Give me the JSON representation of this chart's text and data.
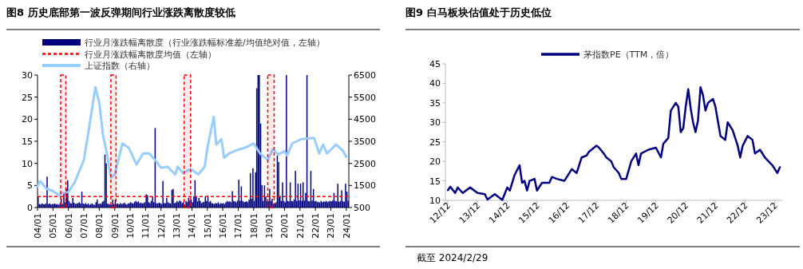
{
  "chart_data": [
    {
      "type": "bar",
      "title": "图8 历史底部第一波反弹期间行业涨跌离散度较低",
      "x": [
        "2004-01",
        "2004-02",
        "2004-03",
        "2004-04",
        "2004-05",
        "2004-06",
        "2004-07",
        "2004-08",
        "2004-09",
        "2004-10",
        "2004-11",
        "2004-12",
        "2005-01",
        "2005-02",
        "2005-03",
        "2005-04",
        "2005-05",
        "2005-06",
        "2005-07",
        "2005-08",
        "2005-09",
        "2005-10",
        "2005-11",
        "2005-12",
        "2006-01",
        "2006-02",
        "2006-03",
        "2006-04",
        "2006-05",
        "2006-06",
        "2006-07",
        "2006-08",
        "2006-09",
        "2006-10",
        "2006-11",
        "2006-12",
        "2007-01",
        "2007-02",
        "2007-03",
        "2007-04",
        "2007-05",
        "2007-06",
        "2007-07",
        "2007-08",
        "2007-09",
        "2007-10",
        "2007-11",
        "2007-12",
        "2008-01",
        "2008-02",
        "2008-03",
        "2008-04",
        "2008-05",
        "2008-06",
        "2008-07",
        "2008-08",
        "2008-09",
        "2008-10",
        "2008-11",
        "2008-12",
        "2009-01",
        "2009-02",
        "2009-03",
        "2009-04",
        "2009-05",
        "2009-06",
        "2009-07",
        "2009-08",
        "2009-09",
        "2009-10",
        "2009-11",
        "2009-12",
        "2010-01",
        "2010-02",
        "2010-03",
        "2010-04",
        "2010-05",
        "2010-06",
        "2010-07",
        "2010-08",
        "2010-09",
        "2010-10",
        "2010-11",
        "2010-12",
        "2011-01",
        "2011-02",
        "2011-03",
        "2011-04",
        "2011-05",
        "2011-06",
        "2011-07",
        "2011-08",
        "2011-09",
        "2011-10",
        "2011-11",
        "2011-12",
        "2012-01",
        "2012-02",
        "2012-03",
        "2012-04",
        "2012-05",
        "2012-06",
        "2012-07",
        "2012-08",
        "2012-09",
        "2012-10",
        "2012-11",
        "2012-12",
        "2013-01",
        "2013-02",
        "2013-03",
        "2013-04",
        "2013-05",
        "2013-06",
        "2013-07",
        "2013-08",
        "2013-09",
        "2013-10",
        "2013-11",
        "2013-12",
        "2014-01",
        "2014-02",
        "2014-03",
        "2014-04",
        "2014-05",
        "2014-06",
        "2014-07",
        "2014-08",
        "2014-09",
        "2014-10",
        "2014-11",
        "2014-12",
        "2015-01",
        "2015-02",
        "2015-03",
        "2015-04",
        "2015-05",
        "2015-06",
        "2015-07",
        "2015-08",
        "2015-09",
        "2015-10",
        "2015-11",
        "2015-12",
        "2016-01",
        "2016-02",
        "2016-03",
        "2016-04",
        "2016-05",
        "2016-06",
        "2016-07",
        "2016-08",
        "2016-09",
        "2016-10",
        "2016-11",
        "2016-12",
        "2017-01",
        "2017-02",
        "2017-03",
        "2017-04",
        "2017-05",
        "2017-06",
        "2017-07",
        "2017-08",
        "2017-09",
        "2017-10",
        "2017-11",
        "2017-12",
        "2018-01",
        "2018-02",
        "2018-03",
        "2018-04",
        "2018-05",
        "2018-06",
        "2018-07",
        "2018-08",
        "2018-09",
        "2018-10",
        "2018-11",
        "2018-12",
        "2019-01",
        "2019-02",
        "2019-03",
        "2019-04",
        "2019-05",
        "2019-06",
        "2019-07",
        "2019-08",
        "2019-09",
        "2019-10",
        "2019-11",
        "2019-12",
        "2020-01",
        "2020-02",
        "2020-03",
        "2020-04",
        "2020-05",
        "2020-06",
        "2020-07",
        "2020-08",
        "2020-09",
        "2020-10",
        "2020-11",
        "2020-12",
        "2021-01",
        "2021-02",
        "2021-03",
        "2021-04",
        "2021-05",
        "2021-06",
        "2021-07",
        "2021-08",
        "2021-09",
        "2021-10",
        "2021-11",
        "2021-12",
        "2022-01",
        "2022-02",
        "2022-03",
        "2022-04",
        "2022-05",
        "2022-06",
        "2022-07",
        "2022-08",
        "2022-09",
        "2022-10",
        "2022-11",
        "2022-12",
        "2023-01",
        "2023-02",
        "2023-03",
        "2023-04",
        "2023-05",
        "2023-06",
        "2023-07",
        "2023-08",
        "2023-09",
        "2023-10",
        "2023-11",
        "2023-12",
        "2024-01",
        "2024-02"
      ],
      "series": [
        {
          "name": "行业月涨跌幅离散度（行业涨跌幅标准差/均值绝对值，左轴）",
          "type": "bar",
          "color": "#000080",
          "values": [
            2.5,
            0.8,
            0.7,
            0.9,
            0.8,
            0.7,
            0.9,
            7,
            0.8,
            0.9,
            0.7,
            0.8,
            0.8,
            0.9,
            0.7,
            0.8,
            0.6,
            0.9,
            2,
            0.8,
            3.5,
            1.2,
            4.2,
            6.2,
            1.5,
            1,
            0.9,
            2.2,
            1.1,
            0.8,
            0.9,
            1,
            1.2,
            0.9,
            3.6,
            0.9,
            0.8,
            1,
            0.7,
            0.9,
            0.6,
            0.8,
            0.9,
            0.7,
            0.6,
            1.2,
            1.8,
            0.8,
            0.9,
            0.8,
            1.3,
            1.5,
            12,
            10,
            0.9,
            0.8,
            0.7,
            0.6,
            1.8,
            0.8,
            1.8,
            0.8,
            0.9,
            0.7,
            1,
            0.8,
            0.9,
            1.1,
            0.8,
            0.7,
            0.9,
            1,
            1.2,
            1,
            0.9,
            1.3,
            1.5,
            1.2,
            1.4,
            1,
            1.1,
            0.9,
            1,
            1.2,
            3,
            2.8,
            1.2,
            1,
            1.5,
            2.5,
            1.2,
            18,
            1,
            0.9,
            1.1,
            1,
            0.8,
            6,
            1,
            1,
            2.2,
            1.2,
            1,
            0.9,
            4,
            4.2,
            1,
            1.1,
            1.5,
            1.2,
            1.6,
            1.4,
            1,
            1.3,
            0.7,
            1.5,
            1.2,
            2.2,
            1.6,
            1.8,
            1.2,
            2.5,
            6.2,
            2.5,
            1.4,
            2.2,
            1.5,
            1,
            1.2,
            1.3,
            2.5,
            1.5,
            2.7,
            1.2,
            1.5,
            1,
            0.9,
            0.8,
            1,
            0.9,
            1.2,
            0.8,
            1,
            0.9,
            1,
            0.8,
            1.2,
            1.5,
            1.3,
            1.4,
            1.2,
            3.7,
            1.5,
            1.4,
            1.2,
            1.6,
            6.3,
            1.5,
            4.8,
            1.5,
            1.2,
            1.3,
            1.4,
            1.2,
            1.8,
            7.8,
            2,
            8.9,
            1.5,
            8,
            27,
            30,
            30,
            19,
            5.1,
            1.5,
            5,
            2.5,
            1.5,
            1.4,
            4.2,
            1.5,
            2,
            0.8,
            0.9,
            1.2,
            11.8,
            10.3,
            2.5,
            1.5,
            5.7,
            1.5,
            1.2,
            30,
            1.5,
            1.4,
            5.7,
            1.5,
            1.4,
            1.8,
            8.3,
            1.5,
            5.4,
            1.6,
            5.4,
            1.5,
            5.7,
            1.6,
            3.3,
            30,
            1.5,
            1.4,
            8.3,
            1.6,
            4.2,
            1.4,
            1.5,
            1.2,
            1.3,
            1.1,
            1.5,
            1.2,
            1.4,
            1.3,
            1.5,
            1.2,
            1.4,
            1.5,
            1.4,
            1.6,
            3.3,
            1.5,
            1.4,
            5.4,
            1.3,
            1.5,
            3.9,
            1.4,
            1.3,
            5.4,
            3.6,
            1.5
          ]
        },
        {
          "name": "上证指数（右轴）",
          "type": "line",
          "axis": "y2",
          "color": "#99ccff",
          "x": [
            "2004-01",
            "2004-03",
            "2004-08",
            "2005-01",
            "2005-06",
            "2005-08",
            "2006-01",
            "2006-06",
            "2007-01",
            "2007-05",
            "2007-10",
            "2008-01",
            "2008-04",
            "2008-07",
            "2008-10",
            "2009-01",
            "2009-07",
            "2009-12",
            "2010-06",
            "2010-11",
            "2011-04",
            "2011-09",
            "2012-01",
            "2012-06",
            "2012-12",
            "2013-02",
            "2013-06",
            "2013-12",
            "2014-06",
            "2014-11",
            "2015-01",
            "2015-06",
            "2015-08",
            "2015-12",
            "2016-02",
            "2016-06",
            "2016-12",
            "2017-06",
            "2018-01",
            "2018-06",
            "2018-12",
            "2019-04",
            "2019-08",
            "2020-01",
            "2020-03",
            "2020-07",
            "2021-02",
            "2021-12",
            "2022-04",
            "2022-07",
            "2022-10",
            "2023-05",
            "2023-10",
            "2024-01"
          ],
          "values": [
            1450,
            1700,
            1350,
            1250,
            1050,
            1150,
            1200,
            1650,
            2650,
            4050,
            5950,
            5250,
            3750,
            2950,
            1850,
            2000,
            3400,
            3200,
            2450,
            2950,
            2950,
            2600,
            2300,
            2350,
            2000,
            2350,
            2050,
            2250,
            2000,
            2350,
            3200,
            4600,
            3350,
            3600,
            2750,
            2950,
            3100,
            3200,
            3400,
            2950,
            2650,
            3150,
            2900,
            3050,
            2850,
            3400,
            3600,
            3650,
            2950,
            3350,
            2950,
            3350,
            3100,
            2800
          ]
        }
      ],
      "ref_lines": [
        {
          "axis": "y",
          "value": 2.5,
          "label": "行业月涨跌幅离散度均值（左轴）",
          "color": "#ff0000",
          "line_style": "dashed"
        }
      ],
      "bands": [
        {
          "axis": "x",
          "from": "2005-07",
          "to": "2005-11",
          "color": "#ff0000"
        },
        {
          "axis": "x",
          "from": "2008-10",
          "to": "2009-02",
          "color": "#ff0000"
        },
        {
          "axis": "x",
          "from": "2013-07",
          "to": "2013-12",
          "color": "#ff0000"
        },
        {
          "axis": "x",
          "from": "2018-12",
          "to": "2019-05",
          "color": "#ff0000"
        }
      ],
      "xlim": [
        "2004-01",
        "2024-03"
      ],
      "xticks": [
        {
          "value": "2004-01",
          "label": "04/01"
        },
        {
          "value": "2005-01",
          "label": "05/01"
        },
        {
          "value": "2006-01",
          "label": "06/01"
        },
        {
          "value": "2007-01",
          "label": "07/01"
        },
        {
          "value": "2008-01",
          "label": "08/01"
        },
        {
          "value": "2009-01",
          "label": "09/01"
        },
        {
          "value": "2010-01",
          "label": "10/01"
        },
        {
          "value": "2011-01",
          "label": "11/01"
        },
        {
          "value": "2012-01",
          "label": "12/01"
        },
        {
          "value": "2013-01",
          "label": "13/01"
        },
        {
          "value": "2014-01",
          "label": "14/01"
        },
        {
          "value": "2015-01",
          "label": "15/01"
        },
        {
          "value": "2016-01",
          "label": "16/01"
        },
        {
          "value": "2017-01",
          "label": "17/01"
        },
        {
          "value": "2018-01",
          "label": "18/01"
        },
        {
          "value": "2019-01",
          "label": "19/01"
        },
        {
          "value": "2020-01",
          "label": "20/01"
        },
        {
          "value": "2021-01",
          "label": "21/01"
        },
        {
          "value": "2022-01",
          "label": "22/01"
        },
        {
          "value": "2023-01",
          "label": "23/01"
        },
        {
          "value": "2024-01",
          "label": "24/01"
        }
      ],
      "ylim": [
        0,
        30
      ],
      "yticks": [
        0,
        5,
        10,
        15,
        20,
        25,
        30
      ],
      "y2lim": [
        500,
        6500
      ],
      "y2ticks": [
        500,
        1500,
        2500,
        3500,
        4500,
        5500,
        6500
      ],
      "legend": "top left",
      "grid": false
    },
    {
      "type": "line",
      "title": "图9 白马板块估值处于历史低位",
      "series": [
        {
          "name": "茅指数PE（TTM，倍）",
          "color": "#000080",
          "x": [
            "2012-12",
            "2013-01",
            "2013-03",
            "2013-04",
            "2013-06",
            "2013-09",
            "2013-12",
            "2014-03",
            "2014-04",
            "2014-07",
            "2014-10",
            "2014-12",
            "2015-01",
            "2015-03",
            "2015-05",
            "2015-06",
            "2015-07",
            "2015-08",
            "2015-09",
            "2015-11",
            "2015-12",
            "2016-02",
            "2016-05",
            "2016-06",
            "2016-08",
            "2016-11",
            "2017-02",
            "2017-04",
            "2017-06",
            "2017-08",
            "2017-09",
            "2017-12",
            "2018-01",
            "2018-03",
            "2018-04",
            "2018-06",
            "2018-07",
            "2018-09",
            "2018-10",
            "2018-12",
            "2019-02",
            "2019-04",
            "2019-05",
            "2019-06",
            "2019-09",
            "2019-12",
            "2020-02",
            "2020-03",
            "2020-05",
            "2020-06",
            "2020-08",
            "2020-09",
            "2020-10",
            "2020-11",
            "2020-12",
            "2021-01",
            "2021-02",
            "2021-03",
            "2021-04",
            "2021-05",
            "2021-06",
            "2021-07",
            "2021-08",
            "2021-09",
            "2021-11",
            "2021-12",
            "2022-02",
            "2022-04",
            "2022-05",
            "2022-07",
            "2022-09",
            "2022-10",
            "2022-11",
            "2023-01",
            "2023-03",
            "2023-04",
            "2023-06",
            "2023-08",
            "2023-11",
            "2024-01",
            "2024-02"
          ],
          "values": [
            12.6,
            13.5,
            11.9,
            13.3,
            11.9,
            13.3,
            11.9,
            11.6,
            10.2,
            11.6,
            10.1,
            13.3,
            12.5,
            16.5,
            19,
            14.5,
            15,
            12.5,
            15,
            15.5,
            12.5,
            14.5,
            14.5,
            16,
            15.5,
            15,
            18,
            17,
            21,
            21.5,
            22.5,
            24,
            23.5,
            22,
            21,
            20,
            18.5,
            17,
            15.5,
            15.5,
            20,
            22,
            19,
            22,
            23,
            23.5,
            21,
            24.5,
            26,
            33,
            35,
            34,
            27.5,
            28.5,
            34,
            38.5,
            33.5,
            30,
            27.5,
            30.5,
            39,
            37,
            33,
            35,
            36,
            34,
            26.5,
            25.5,
            30,
            28,
            24,
            21,
            24,
            26.5,
            25.5,
            22,
            23,
            21,
            19,
            17,
            18.5
          ]
        }
      ],
      "xlim": [
        "2012-11",
        "2024-03"
      ],
      "xticks": [
        {
          "value": "2012-12",
          "label": "12/12"
        },
        {
          "value": "2013-12",
          "label": "13/12"
        },
        {
          "value": "2014-12",
          "label": "14/12"
        },
        {
          "value": "2015-12",
          "label": "15/12"
        },
        {
          "value": "2016-12",
          "label": "16/12"
        },
        {
          "value": "2017-12",
          "label": "17/12"
        },
        {
          "value": "2018-12",
          "label": "18/12"
        },
        {
          "value": "2019-12",
          "label": "19/12"
        },
        {
          "value": "2020-12",
          "label": "20/12"
        },
        {
          "value": "2021-12",
          "label": "21/12"
        },
        {
          "value": "2022-12",
          "label": "22/12"
        },
        {
          "value": "2023-12",
          "label": "23/12"
        }
      ],
      "ylim": [
        10,
        45
      ],
      "yticks": [
        10,
        15,
        20,
        25,
        30,
        35,
        40,
        45
      ],
      "legend": "top",
      "grid": false,
      "annotations": [
        "截至 2024/2/29"
      ]
    }
  ]
}
